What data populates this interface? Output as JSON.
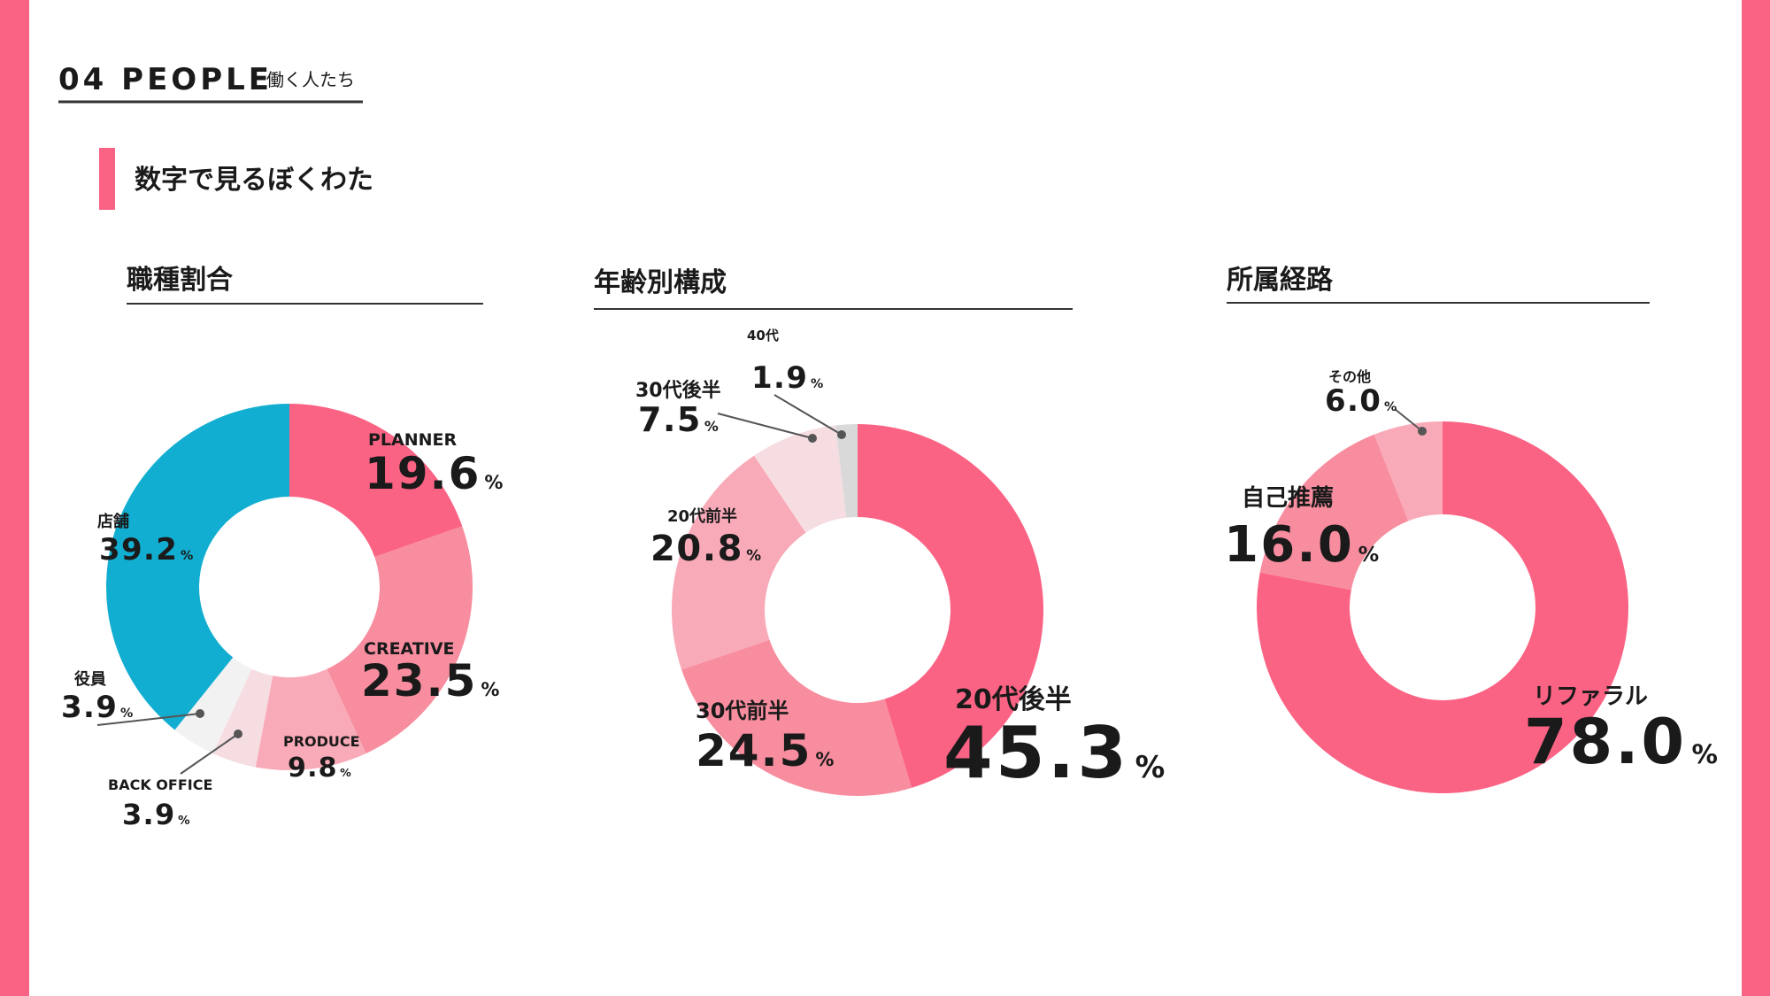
{
  "header": {
    "section": "04 PEOPLE",
    "section_sub": "働く人たち",
    "heading": "数字で見るぼくわた"
  },
  "chart_data": [
    {
      "type": "donut",
      "title": "職種割合",
      "unit": "%",
      "categories": [
        "PLANNER",
        "CREATIVE",
        "PRODUCE",
        "BACK OFFICE",
        "役員",
        "店舗"
      ],
      "values": [
        19.6,
        23.5,
        9.8,
        3.9,
        3.9,
        39.2
      ],
      "value_labels": [
        "19.6",
        "23.5",
        "9.8",
        "3.9",
        "3.9",
        "39.2"
      ],
      "colors": [
        "#fb6384",
        "#f78d9e",
        "#f9aab8",
        "#f6dde2",
        "#f2f2f2",
        "#12aed1"
      ]
    },
    {
      "type": "donut",
      "title": "年齢別構成",
      "unit": "%",
      "categories": [
        "20代後半",
        "30代前半",
        "20代前半",
        "30代後半",
        "40代"
      ],
      "values": [
        45.3,
        24.5,
        20.8,
        7.5,
        1.9
      ],
      "value_labels": [
        "45.3",
        "24.5",
        "20.8",
        "7.5",
        "1.9"
      ],
      "colors": [
        "#fb6384",
        "#f78d9e",
        "#f9aab8",
        "#f6dde2",
        "#d9d9d9"
      ]
    },
    {
      "type": "donut",
      "title": "所属経路",
      "unit": "%",
      "categories": [
        "リファラル",
        "自己推薦",
        "その他"
      ],
      "values": [
        78.0,
        16.0,
        6.0
      ],
      "value_labels": [
        "78.0",
        "16.0",
        "6.0"
      ],
      "colors": [
        "#fb6384",
        "#f78d9e",
        "#f9aab8"
      ]
    }
  ]
}
